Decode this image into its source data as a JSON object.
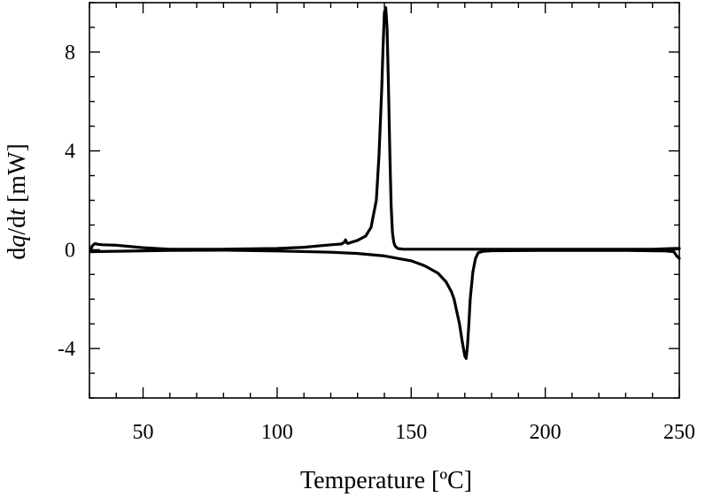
{
  "chart_data": {
    "type": "line",
    "title": "",
    "xlabel": "Temperature [ºC]",
    "ylabel_parts": [
      "d",
      "q",
      "/d",
      "t",
      " [mW]"
    ],
    "xlim": [
      30,
      250
    ],
    "ylim": [
      -6,
      10
    ],
    "x_ticks": [
      50,
      100,
      150,
      200,
      250
    ],
    "x_tick_labels": [
      "50",
      "100",
      "150",
      "200",
      "250"
    ],
    "x_minor_step": 10,
    "y_ticks": [
      -4,
      0,
      4,
      8
    ],
    "y_tick_labels": [
      "-4",
      "0",
      "4",
      "8"
    ],
    "y_minor_step": 1,
    "grid": false,
    "legend": "none",
    "line_color": "#000000",
    "series": [
      {
        "x": [
          30.5,
          31,
          32,
          33,
          35,
          40,
          50,
          60,
          80,
          100,
          110,
          115,
          120,
          124,
          125,
          125.5,
          126,
          126.5,
          127,
          130,
          133,
          135,
          137,
          138,
          139,
          139.5,
          140,
          140.5,
          141,
          141.5,
          142,
          142.5,
          143,
          143.5,
          144,
          145,
          147,
          150,
          160,
          200,
          240,
          248,
          250
        ],
        "y": [
          0.0,
          0.15,
          0.25,
          0.22,
          0.2,
          0.18,
          0.08,
          0.02,
          0.02,
          0.05,
          0.1,
          0.15,
          0.2,
          0.23,
          0.3,
          0.4,
          0.28,
          0.25,
          0.28,
          0.38,
          0.55,
          0.9,
          2.0,
          3.8,
          6.5,
          8.2,
          9.6,
          9.8,
          9.0,
          6.8,
          4.0,
          1.8,
          0.7,
          0.3,
          0.15,
          0.05,
          0.02,
          0.02,
          0.02,
          0.02,
          0.02,
          0.05,
          0.05
        ]
      },
      {
        "x": [
          30.5,
          40,
          60,
          80,
          100,
          120,
          130,
          140,
          150,
          155,
          160,
          163,
          165,
          166,
          167,
          168,
          169,
          170,
          170.5,
          171,
          171.5,
          172,
          173,
          174,
          175,
          177,
          180,
          200,
          230,
          245,
          248,
          249,
          250
        ],
        "y": [
          -0.08,
          -0.06,
          -0.03,
          -0.02,
          -0.05,
          -0.1,
          -0.15,
          -0.25,
          -0.45,
          -0.65,
          -0.95,
          -1.3,
          -1.7,
          -2.0,
          -2.5,
          -3.0,
          -3.7,
          -4.3,
          -4.4,
          -3.9,
          -3.0,
          -2.0,
          -0.9,
          -0.35,
          -0.12,
          -0.06,
          -0.04,
          -0.03,
          -0.03,
          -0.05,
          -0.08,
          -0.25,
          -0.35
        ]
      }
    ]
  }
}
